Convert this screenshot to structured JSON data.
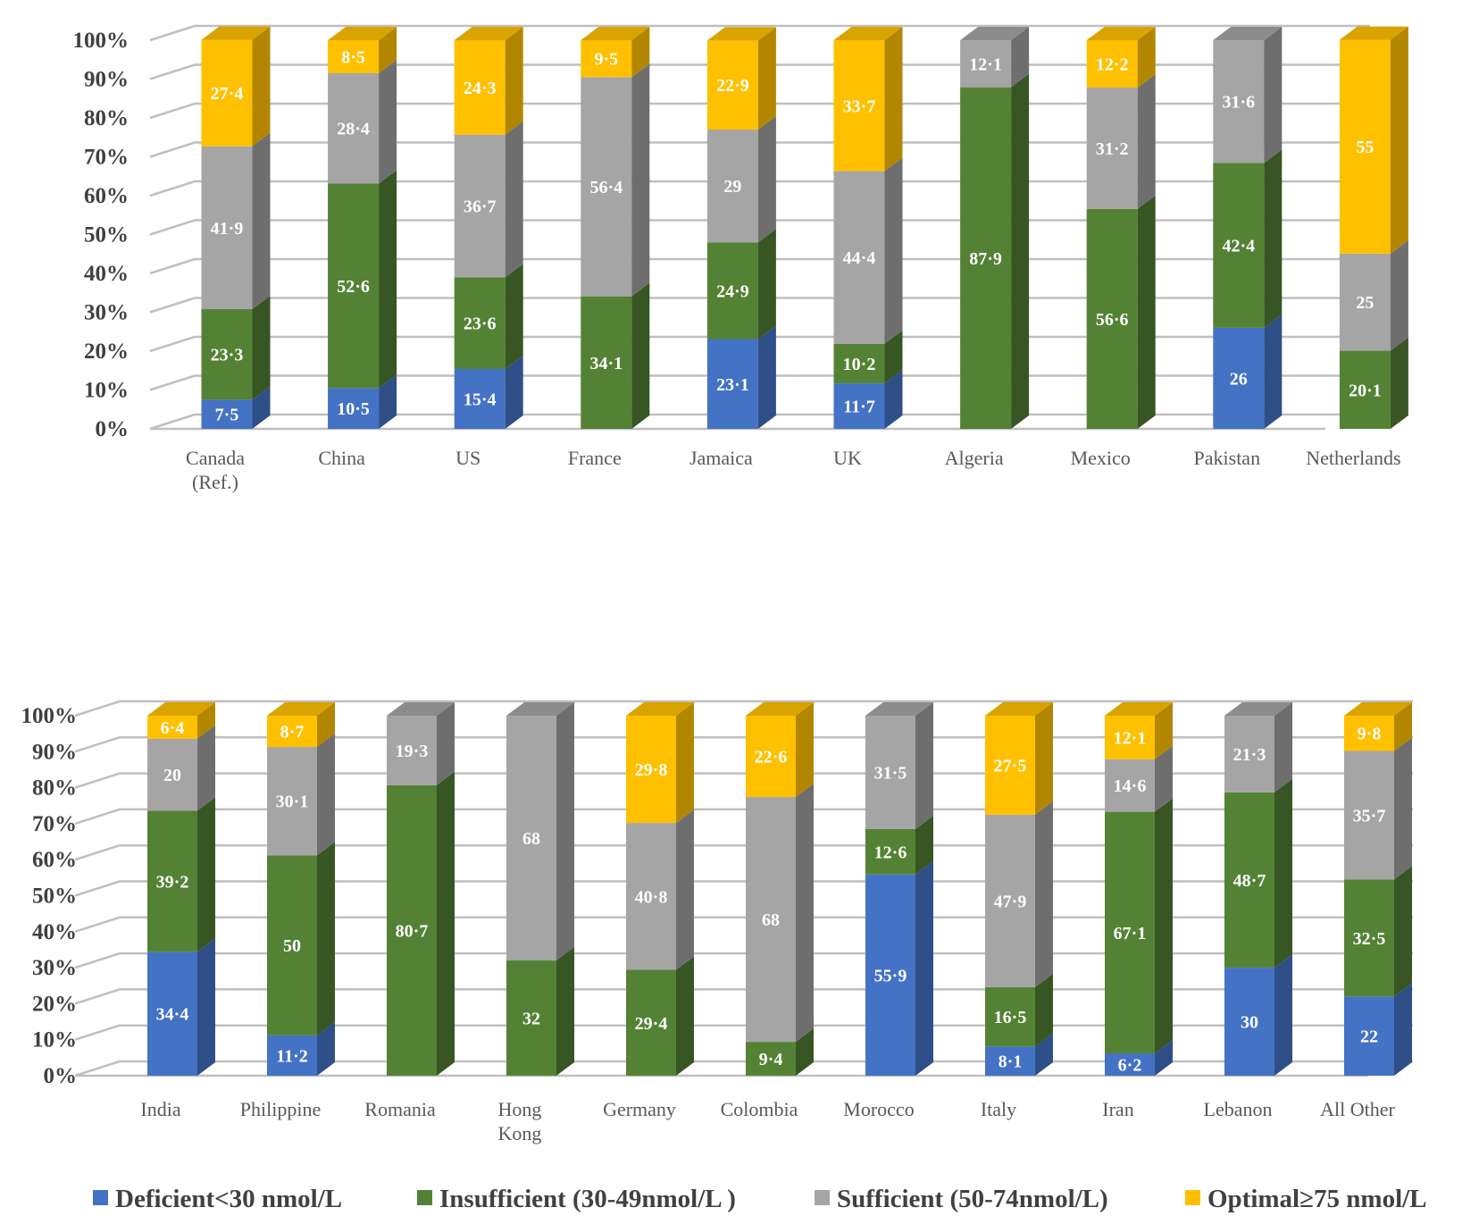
{
  "chart_data": [
    {
      "type": "bar",
      "stacked": true,
      "y_tick_labels": [
        "0%",
        "10%",
        "20%",
        "30%",
        "40%",
        "50%",
        "60%",
        "70%",
        "80%",
        "90%",
        "100%"
      ],
      "ylim": [
        0,
        100
      ],
      "categories": [
        [
          "Canada",
          "(Ref.)"
        ],
        [
          "China"
        ],
        [
          "US"
        ],
        [
          "France"
        ],
        [
          "Jamaica"
        ],
        [
          "UK"
        ],
        [
          "Algeria"
        ],
        [
          "Mexico"
        ],
        [
          "Pakistan"
        ],
        [
          "Netherlands"
        ]
      ],
      "series": [
        {
          "name": "Deficient<30 nmol/L",
          "values": [
            7.5,
            10.5,
            15.4,
            0,
            23.1,
            11.7,
            0,
            0,
            26,
            0
          ],
          "labels": [
            "7·5",
            "10·5",
            "15·4",
            "",
            "23·1",
            "11·7",
            "",
            "",
            "26",
            ""
          ]
        },
        {
          "name": "Insufficient (30-49nmol/L )",
          "values": [
            23.3,
            52.6,
            23.6,
            34.1,
            24.9,
            10.2,
            87.9,
            56.6,
            42.4,
            20.1
          ],
          "labels": [
            "23·3",
            "52·6",
            "23·6",
            "34·1",
            "24·9",
            "10·2",
            "87·9",
            "56·6",
            "42·4",
            "20·1"
          ]
        },
        {
          "name": "Sufficient (50-74nmol/L)",
          "values": [
            41.9,
            28.4,
            36.7,
            56.4,
            29,
            44.4,
            12.1,
            31.2,
            31.6,
            25
          ],
          "labels": [
            "41·9",
            "28·4",
            "36·7",
            "56·4",
            "29",
            "44·4",
            "12·1",
            "31·2",
            "31·6",
            "25"
          ]
        },
        {
          "name": "Optimal≥75 nmol/L",
          "values": [
            27.4,
            8.5,
            24.3,
            9.5,
            22.9,
            33.7,
            0,
            12.2,
            0,
            55
          ],
          "labels": [
            "27·4",
            "8·5",
            "24·3",
            "9·5",
            "22·9",
            "33·7",
            "",
            "12·2",
            "",
            "55"
          ]
        }
      ]
    },
    {
      "type": "bar",
      "stacked": true,
      "y_tick_labels": [
        "0%",
        "10%",
        "20%",
        "30%",
        "40%",
        "50%",
        "60%",
        "70%",
        "80%",
        "90%",
        "100%"
      ],
      "ylim": [
        0,
        100
      ],
      "categories": [
        [
          "India"
        ],
        [
          "Philippine"
        ],
        [
          "Romania"
        ],
        [
          "Hong",
          "Kong"
        ],
        [
          "Germany"
        ],
        [
          "Colombia"
        ],
        [
          "Morocco"
        ],
        [
          "Italy"
        ],
        [
          "Iran"
        ],
        [
          "Lebanon"
        ],
        [
          "All Other"
        ]
      ],
      "series": [
        {
          "name": "Deficient<30 nmol/L",
          "values": [
            34.4,
            11.2,
            0,
            0,
            0,
            0,
            55.9,
            8.1,
            6.2,
            30,
            22
          ],
          "labels": [
            "34·4",
            "11·2",
            "",
            "",
            "",
            "",
            "55·9",
            "8·1",
            "6·2",
            "30",
            "22"
          ]
        },
        {
          "name": "Insufficient (30-49nmol/L )",
          "values": [
            39.2,
            50,
            80.7,
            32,
            29.4,
            9.4,
            12.6,
            16.5,
            67.1,
            48.7,
            32.5
          ],
          "labels": [
            "39·2",
            "50",
            "80·7",
            "32",
            "29·4",
            "9·4",
            "12·6",
            "16·5",
            "67·1",
            "48·7",
            "32·5"
          ]
        },
        {
          "name": "Sufficient (50-74nmol/L)",
          "values": [
            20,
            30.1,
            19.3,
            68,
            40.8,
            68,
            31.5,
            47.9,
            14.6,
            21.3,
            35.7
          ],
          "labels": [
            "20",
            "30·1",
            "19·3",
            "68",
            "40·8",
            "68",
            "31·5",
            "47·9",
            "14·6",
            "21·3",
            "35·7"
          ]
        },
        {
          "name": "Optimal≥75 nmol/L",
          "values": [
            6.4,
            8.7,
            0,
            0,
            29.8,
            22.6,
            0,
            27.5,
            12.1,
            0,
            9.8
          ],
          "labels": [
            "6·4",
            "8·7",
            "",
            "",
            "29·8",
            "22·6",
            "",
            "27·5",
            "12·1",
            "",
            "9·8"
          ]
        }
      ]
    }
  ],
  "legend": [
    {
      "label": "Deficient<30 nmol/L",
      "color": "#4472C4"
    },
    {
      "label": "Insufficient (30-49nmol/L )",
      "color": "#548235"
    },
    {
      "label": "Sufficient (50-74nmol/L)",
      "color": "#A5A5A5"
    },
    {
      "label": "Optimal≥75 nmol/L",
      "color": "#FFC000"
    }
  ],
  "colors": {
    "front": [
      "#4472C4",
      "#548235",
      "#A5A5A5",
      "#FFC000"
    ],
    "side": [
      "#2F4F88",
      "#375623",
      "#6E6E6E",
      "#B38600"
    ],
    "top": [
      "#3A63AD",
      "#47702D",
      "#8C8C8C",
      "#D9A300"
    ],
    "grid": "#BFBFBF"
  }
}
